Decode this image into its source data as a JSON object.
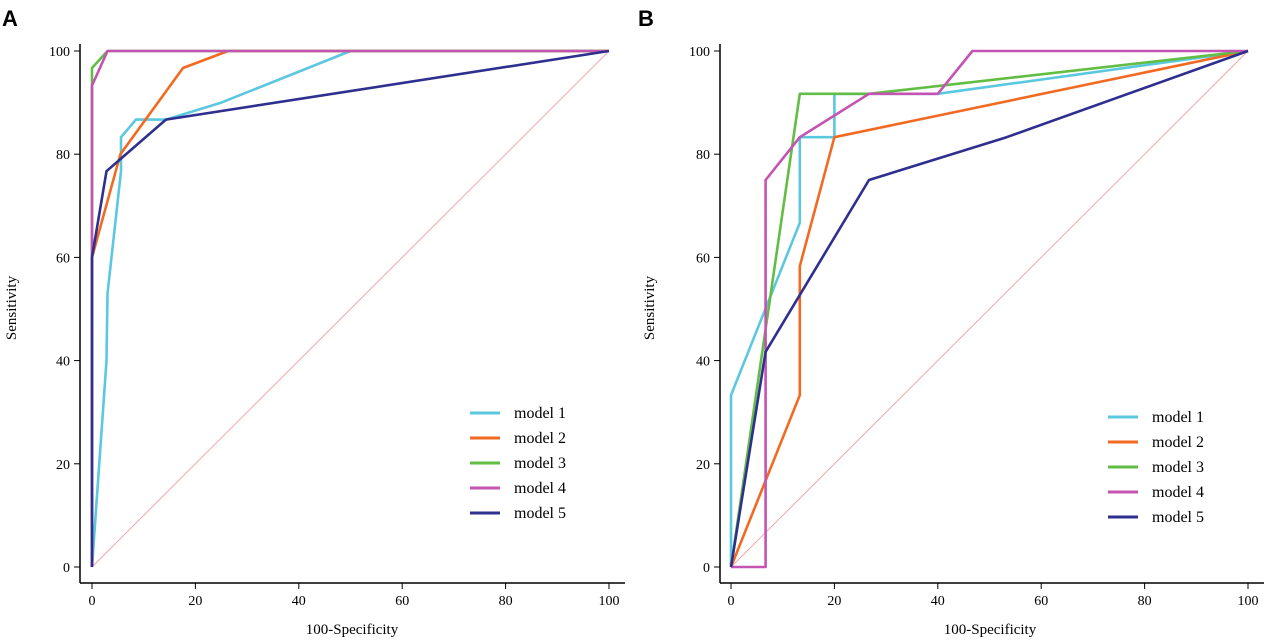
{
  "chart_data": [
    {
      "panel": "A",
      "type": "line",
      "xlabel": "100-Specificity",
      "ylabel": "Sensitivity",
      "xlim": [
        0,
        100
      ],
      "ylim": [
        0,
        100
      ],
      "xticks": [
        0,
        20,
        40,
        60,
        80,
        100
      ],
      "yticks": [
        0,
        20,
        40,
        60,
        80,
        100
      ],
      "grid": false,
      "legend_position": "bottom-right",
      "reference_line": {
        "x": [
          0,
          100
        ],
        "y": [
          0,
          100
        ],
        "color": "#f0a8a8"
      },
      "series": [
        {
          "name": "model 1",
          "color": "#5bc8e0",
          "x": [
            0,
            2.8,
            3,
            5.6,
            5.6,
            8.5,
            14.3,
            25,
            50,
            100
          ],
          "y": [
            0,
            40,
            53,
            76.7,
            83.3,
            86.7,
            86.7,
            90,
            100,
            100
          ]
        },
        {
          "name": "model 2",
          "color": "#f26a22",
          "x": [
            0,
            0,
            5.5,
            17.6,
            26.3,
            100
          ],
          "y": [
            0,
            60,
            80,
            96.7,
            100,
            100
          ]
        },
        {
          "name": "model 3",
          "color": "#62bd45",
          "x": [
            0,
            0,
            0,
            3,
            100
          ],
          "y": [
            0,
            93.3,
            96.7,
            100,
            100
          ]
        },
        {
          "name": "model 4",
          "color": "#c453b2",
          "x": [
            0,
            0,
            3,
            100
          ],
          "y": [
            0,
            93.3,
            100,
            100
          ]
        },
        {
          "name": "model 5",
          "color": "#2e2f8e",
          "x": [
            0,
            0,
            2.8,
            14.3,
            100
          ],
          "y": [
            0,
            60,
            76.7,
            86.7,
            100
          ]
        }
      ]
    },
    {
      "panel": "B",
      "type": "line",
      "xlabel": "100-Specificity",
      "ylabel": "Sensitivity",
      "xlim": [
        0,
        100
      ],
      "ylim": [
        0,
        100
      ],
      "xticks": [
        0,
        20,
        40,
        60,
        80,
        100
      ],
      "yticks": [
        0,
        20,
        40,
        60,
        80,
        100
      ],
      "grid": false,
      "legend_position": "bottom-right",
      "reference_line": {
        "x": [
          0,
          100
        ],
        "y": [
          0,
          100
        ],
        "color": "#f0a8a8"
      },
      "series": [
        {
          "name": "model 1",
          "color": "#5bc8e0",
          "x": [
            0,
            0,
            13.3,
            13.3,
            20,
            20,
            40,
            100
          ],
          "y": [
            0,
            33.3,
            66.7,
            83.3,
            83.3,
            91.7,
            91.7,
            100
          ]
        },
        {
          "name": "model 2",
          "color": "#f26a22",
          "x": [
            0,
            13.3,
            13.3,
            20,
            100
          ],
          "y": [
            0,
            33.3,
            58.3,
            83.3,
            100
          ]
        },
        {
          "name": "model 3",
          "color": "#62bd45",
          "x": [
            0,
            13.3,
            26.7,
            100
          ],
          "y": [
            0,
            91.7,
            91.7,
            100
          ]
        },
        {
          "name": "model 4",
          "color": "#c453b2",
          "x": [
            0,
            6.7,
            6.7,
            13.3,
            26.7,
            40,
            46.7,
            100
          ],
          "y": [
            0,
            0,
            75,
            83.3,
            91.7,
            91.7,
            100,
            100
          ]
        },
        {
          "name": "model 5",
          "color": "#2e2f8e",
          "x": [
            0,
            6.7,
            26.7,
            53.3,
            100
          ],
          "y": [
            0,
            41.7,
            75,
            83.3,
            100
          ]
        }
      ]
    }
  ]
}
